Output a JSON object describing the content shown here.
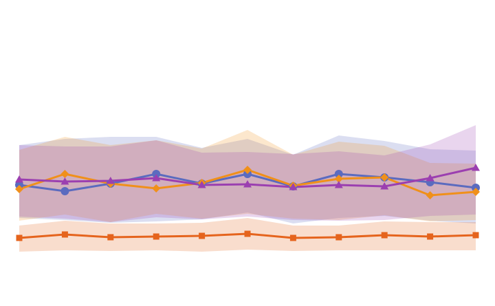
{
  "chart_data": {
    "type": "line",
    "title": "",
    "xlabel": "",
    "ylabel": "",
    "x": [
      0,
      1,
      2,
      3,
      4,
      5,
      6,
      7,
      8,
      9,
      10
    ],
    "ylim": [
      0,
      445
    ],
    "grid": false,
    "legend": "none",
    "series": [
      {
        "color": "#5b6bbf",
        "marker": "circle",
        "values": [
          176,
          167,
          178,
          192,
          178,
          192,
          174,
          192,
          187,
          180,
          172
        ],
        "band_upper": [
          234,
          243,
          246,
          246,
          230,
          243,
          220,
          248,
          240,
          228,
          226
        ],
        "band_lower": [
          128,
          125,
          121,
          123,
          126,
          136,
          120,
          128,
          131,
          124,
          120
        ]
      },
      {
        "color": "#f0901a",
        "marker": "diamond",
        "values": [
          170,
          192,
          178,
          171,
          179,
          198,
          175,
          185,
          187,
          161,
          166
        ],
        "band_upper": [
          227,
          246,
          234,
          241,
          229,
          256,
          220,
          239,
          233,
          208,
          207
        ],
        "band_lower": [
          124,
          133,
          122,
          134,
          127,
          134,
          127,
          125,
          132,
          123,
          125
        ]
      },
      {
        "color": "#9b3fb0",
        "marker": "triangle",
        "values": [
          184,
          181,
          182,
          186,
          176,
          177,
          173,
          176,
          174,
          186,
          201
        ],
        "band_upper": [
          234,
          232,
          232,
          241,
          223,
          224,
          221,
          225,
          219,
          235,
          263
        ],
        "band_lower": [
          130,
          127,
          122,
          129,
          126,
          130,
          125,
          124,
          125,
          131,
          133
        ]
      },
      {
        "color": "#e5641d",
        "marker": "square",
        "values": [
          99,
          104,
          100,
          101,
          102,
          105,
          99,
          100,
          103,
          101,
          103
        ],
        "band_upper": [
          117,
          124,
          120,
          120,
          121,
          128,
          117,
          117,
          123,
          122,
          122
        ],
        "band_lower": [
          79,
          81,
          80,
          81,
          79,
          82,
          80,
          81,
          81,
          81,
          81
        ]
      }
    ]
  }
}
